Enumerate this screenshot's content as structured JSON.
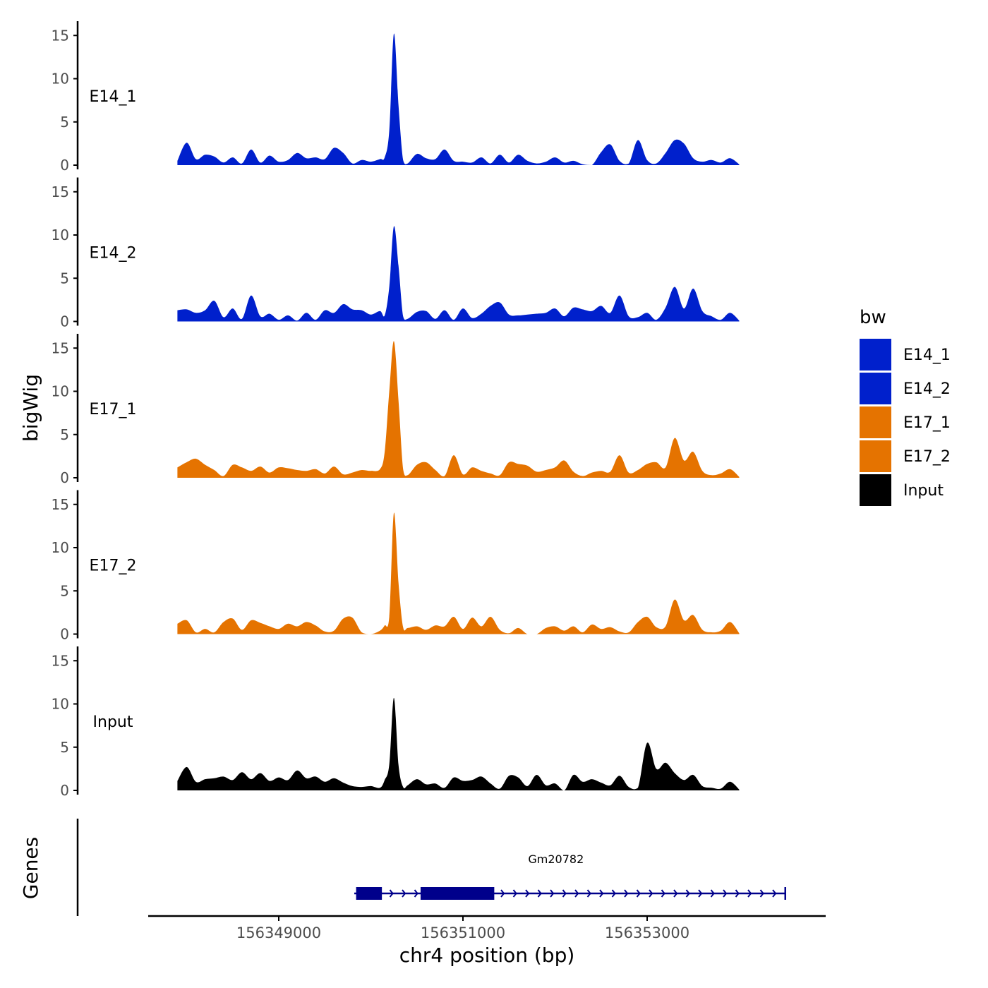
{
  "chart_data": {
    "type": "area",
    "y_axis_title": "bigWig",
    "x_axis_title": "chr4 position (bp)",
    "x_ticks": [
      156349000,
      156351000,
      156353000
    ],
    "x_tick_labels": [
      "156349000",
      "156351000",
      "156353000"
    ],
    "y_ticks": [
      0,
      5,
      10,
      15
    ],
    "y_tick_labels": [
      "0",
      "5",
      "10",
      "15"
    ],
    "ylim": [
      0,
      16
    ],
    "xlim": [
      156347450,
      156354750
    ],
    "legend": {
      "title": "bw",
      "position": "right",
      "entries": [
        {
          "label": "E14_1",
          "color": "#0020CC"
        },
        {
          "label": "E14_2",
          "color": "#0020CC"
        },
        {
          "label": "E17_1",
          "color": "#E57300"
        },
        {
          "label": "E17_2",
          "color": "#E57300"
        },
        {
          "label": "Input",
          "color": "#000000"
        }
      ]
    },
    "tracks": [
      {
        "name": "E14_1",
        "color": "#0020CC",
        "x": [
          156347900,
          156348000,
          156348100,
          156348200,
          156348300,
          156348400,
          156348500,
          156348600,
          156348700,
          156348800,
          156348900,
          156349000,
          156349100,
          156349200,
          156349300,
          156349400,
          156349500,
          156349600,
          156349700,
          156349800,
          156349900,
          156350000,
          156350100,
          156350150,
          156350200,
          156350250,
          156350300,
          156350350,
          156350400,
          156350500,
          156350600,
          156350700,
          156350800,
          156350900,
          156351000,
          156351100,
          156351200,
          156351300,
          156351400,
          156351500,
          156351600,
          156351700,
          156351800,
          156351900,
          156352000,
          156352100,
          156352200,
          156352300,
          156352400,
          156352500,
          156352600,
          156352700,
          156352800,
          156352900,
          156353000,
          156353100,
          156353200,
          156353300,
          156353400,
          156353500,
          156353600,
          156353700,
          156353800,
          156353900,
          156354000
        ],
        "values": [
          0.5,
          2.6,
          0.7,
          1.2,
          1.0,
          0.3,
          0.9,
          0.2,
          1.8,
          0.3,
          1.1,
          0.4,
          0.6,
          1.4,
          0.8,
          0.9,
          0.7,
          2.0,
          1.4,
          0.2,
          0.6,
          0.4,
          0.7,
          0.9,
          4.0,
          15.2,
          7.0,
          0.6,
          0.2,
          1.3,
          0.8,
          0.7,
          1.8,
          0.5,
          0.4,
          0.3,
          0.9,
          0.2,
          1.2,
          0.3,
          1.2,
          0.5,
          0.2,
          0.4,
          0.9,
          0.3,
          0.5,
          0.1,
          0.0,
          1.5,
          2.4,
          0.5,
          0.2,
          2.9,
          0.6,
          0.2,
          1.4,
          2.9,
          2.5,
          0.8,
          0.4,
          0.6,
          0.3,
          0.8,
          0.1
        ]
      },
      {
        "name": "E14_2",
        "color": "#0020CC",
        "x": [
          156347900,
          156348000,
          156348100,
          156348200,
          156348300,
          156348400,
          156348500,
          156348600,
          156348700,
          156348800,
          156348900,
          156349000,
          156349100,
          156349200,
          156349300,
          156349400,
          156349500,
          156349600,
          156349700,
          156349800,
          156349900,
          156350000,
          156350100,
          156350150,
          156350200,
          156350250,
          156350300,
          156350350,
          156350400,
          156350500,
          156350600,
          156350700,
          156350800,
          156350900,
          156351000,
          156351100,
          156351200,
          156351300,
          156351400,
          156351500,
          156351600,
          156351700,
          156351800,
          156351900,
          156352000,
          156352100,
          156352200,
          156352300,
          156352400,
          156352500,
          156352600,
          156352700,
          156352800,
          156352900,
          156353000,
          156353100,
          156353200,
          156353300,
          156353400,
          156353500,
          156353600,
          156353700,
          156353800,
          156353900,
          156354000
        ],
        "values": [
          1.3,
          1.4,
          1.0,
          1.3,
          2.4,
          0.5,
          1.5,
          0.3,
          3.0,
          0.6,
          0.9,
          0.2,
          0.7,
          0.1,
          1.0,
          0.2,
          1.3,
          1.0,
          2.0,
          1.4,
          1.3,
          0.8,
          1.2,
          0.7,
          4.0,
          11.0,
          6.5,
          0.6,
          0.3,
          1.1,
          1.2,
          0.3,
          1.3,
          0.2,
          1.5,
          0.4,
          0.9,
          1.8,
          2.2,
          0.8,
          0.7,
          0.8,
          0.9,
          1.0,
          1.5,
          0.6,
          1.6,
          1.4,
          1.2,
          1.8,
          1.0,
          3.0,
          0.6,
          0.5,
          1.0,
          0.2,
          1.6,
          4.0,
          1.5,
          3.8,
          1.2,
          0.6,
          0.2,
          1.0,
          0.1
        ]
      },
      {
        "name": "E17_1",
        "color": "#E57300",
        "x": [
          156347900,
          156348000,
          156348100,
          156348200,
          156348300,
          156348400,
          156348500,
          156348600,
          156348700,
          156348800,
          156348900,
          156349000,
          156349100,
          156349200,
          156349300,
          156349400,
          156349500,
          156349600,
          156349700,
          156349800,
          156349900,
          156350000,
          156350100,
          156350150,
          156350200,
          156350250,
          156350300,
          156350350,
          156350400,
          156350500,
          156350600,
          156350700,
          156350800,
          156350900,
          156351000,
          156351100,
          156351200,
          156351300,
          156351400,
          156351500,
          156351600,
          156351700,
          156351800,
          156351900,
          156352000,
          156352100,
          156352200,
          156352300,
          156352400,
          156352500,
          156352600,
          156352700,
          156352800,
          156352900,
          156353000,
          156353100,
          156353200,
          156353300,
          156353400,
          156353500,
          156353600,
          156353700,
          156353800,
          156353900,
          156354000
        ],
        "values": [
          1.2,
          1.8,
          2.2,
          1.5,
          0.9,
          0.2,
          1.5,
          1.2,
          0.8,
          1.3,
          0.6,
          1.2,
          1.1,
          0.9,
          0.8,
          1.0,
          0.5,
          1.3,
          0.4,
          0.6,
          0.9,
          0.8,
          1.0,
          3.0,
          10.0,
          15.8,
          9.0,
          1.0,
          0.3,
          1.5,
          1.8,
          0.9,
          0.2,
          2.6,
          0.4,
          1.2,
          0.8,
          0.5,
          0.3,
          1.8,
          1.6,
          1.4,
          0.7,
          0.9,
          1.2,
          2.0,
          0.7,
          0.2,
          0.6,
          0.8,
          0.7,
          2.6,
          0.6,
          0.9,
          1.6,
          1.8,
          1.2,
          4.6,
          2.0,
          3.0,
          0.8,
          0.3,
          0.5,
          1.0,
          0.1
        ]
      },
      {
        "name": "E17_2",
        "color": "#E57300",
        "x": [
          156347900,
          156348000,
          156348100,
          156348200,
          156348300,
          156348400,
          156348500,
          156348600,
          156348700,
          156348800,
          156348900,
          156349000,
          156349100,
          156349200,
          156349300,
          156349400,
          156349500,
          156349600,
          156349700,
          156349800,
          156349900,
          156350000,
          156350100,
          156350150,
          156350200,
          156350250,
          156350300,
          156350350,
          156350400,
          156350500,
          156350600,
          156350700,
          156350800,
          156350900,
          156351000,
          156351100,
          156351200,
          156351300,
          156351400,
          156351500,
          156351600,
          156351700,
          156351800,
          156351900,
          156352000,
          156352100,
          156352200,
          156352300,
          156352400,
          156352500,
          156352600,
          156352700,
          156352800,
          156352900,
          156353000,
          156353100,
          156353200,
          156353300,
          156353400,
          156353500,
          156353600,
          156353700,
          156353800,
          156353900,
          156354000
        ],
        "values": [
          1.2,
          1.6,
          0.2,
          0.6,
          0.2,
          1.4,
          1.8,
          0.5,
          1.6,
          1.3,
          0.9,
          0.6,
          1.2,
          0.9,
          1.4,
          1.0,
          0.3,
          0.4,
          1.8,
          1.9,
          0.2,
          0.0,
          0.4,
          1.0,
          2.0,
          14.0,
          6.0,
          0.8,
          0.7,
          0.9,
          0.5,
          1.0,
          0.9,
          2.0,
          0.6,
          1.9,
          0.9,
          2.0,
          0.5,
          0.1,
          0.7,
          0.0,
          0.0,
          0.7,
          0.9,
          0.4,
          0.9,
          0.2,
          1.1,
          0.6,
          0.8,
          0.3,
          0.2,
          1.4,
          2.0,
          0.8,
          0.9,
          4.0,
          1.6,
          2.2,
          0.5,
          0.2,
          0.4,
          1.4,
          0.1
        ]
      },
      {
        "name": "Input",
        "color": "#000000",
        "x": [
          156347900,
          156348000,
          156348100,
          156348200,
          156348300,
          156348400,
          156348500,
          156348600,
          156348700,
          156348800,
          156348900,
          156349000,
          156349100,
          156349200,
          156349300,
          156349400,
          156349500,
          156349600,
          156349700,
          156349800,
          156349900,
          156350000,
          156350100,
          156350150,
          156350200,
          156350250,
          156350300,
          156350350,
          156350400,
          156350500,
          156350600,
          156350700,
          156350800,
          156350900,
          156351000,
          156351100,
          156351200,
          156351300,
          156351400,
          156351500,
          156351600,
          156351700,
          156351800,
          156351900,
          156352000,
          156352100,
          156352200,
          156352300,
          156352400,
          156352500,
          156352600,
          156352700,
          156352800,
          156352900,
          156353000,
          156353100,
          156353200,
          156353300,
          156353400,
          156353500,
          156353600,
          156353700,
          156353800,
          156353900,
          156354000
        ],
        "values": [
          1.1,
          2.7,
          1.0,
          1.3,
          1.4,
          1.6,
          1.2,
          2.1,
          1.3,
          2.0,
          1.1,
          1.5,
          1.2,
          2.3,
          1.4,
          1.6,
          1.0,
          1.4,
          0.9,
          0.5,
          0.4,
          0.5,
          0.3,
          1.2,
          3.0,
          10.7,
          3.0,
          0.4,
          0.6,
          1.3,
          0.7,
          0.8,
          0.3,
          1.5,
          1.1,
          1.2,
          1.6,
          0.8,
          0.2,
          1.7,
          1.5,
          0.5,
          1.8,
          0.6,
          0.8,
          0.0,
          1.8,
          1.0,
          1.3,
          0.9,
          0.6,
          1.7,
          0.4,
          0.3,
          5.5,
          2.5,
          3.2,
          2.0,
          1.2,
          1.8,
          0.5,
          0.3,
          0.2,
          1.0,
          0.1
        ]
      }
    ],
    "gene_track": {
      "title": "Genes",
      "gene_name": "Gm20782",
      "color": "#00008B",
      "strand": "+",
      "start": 156349820,
      "end": 156354500,
      "exons": [
        [
          156349840,
          156350120
        ],
        [
          156350540,
          156351340
        ]
      ]
    }
  }
}
